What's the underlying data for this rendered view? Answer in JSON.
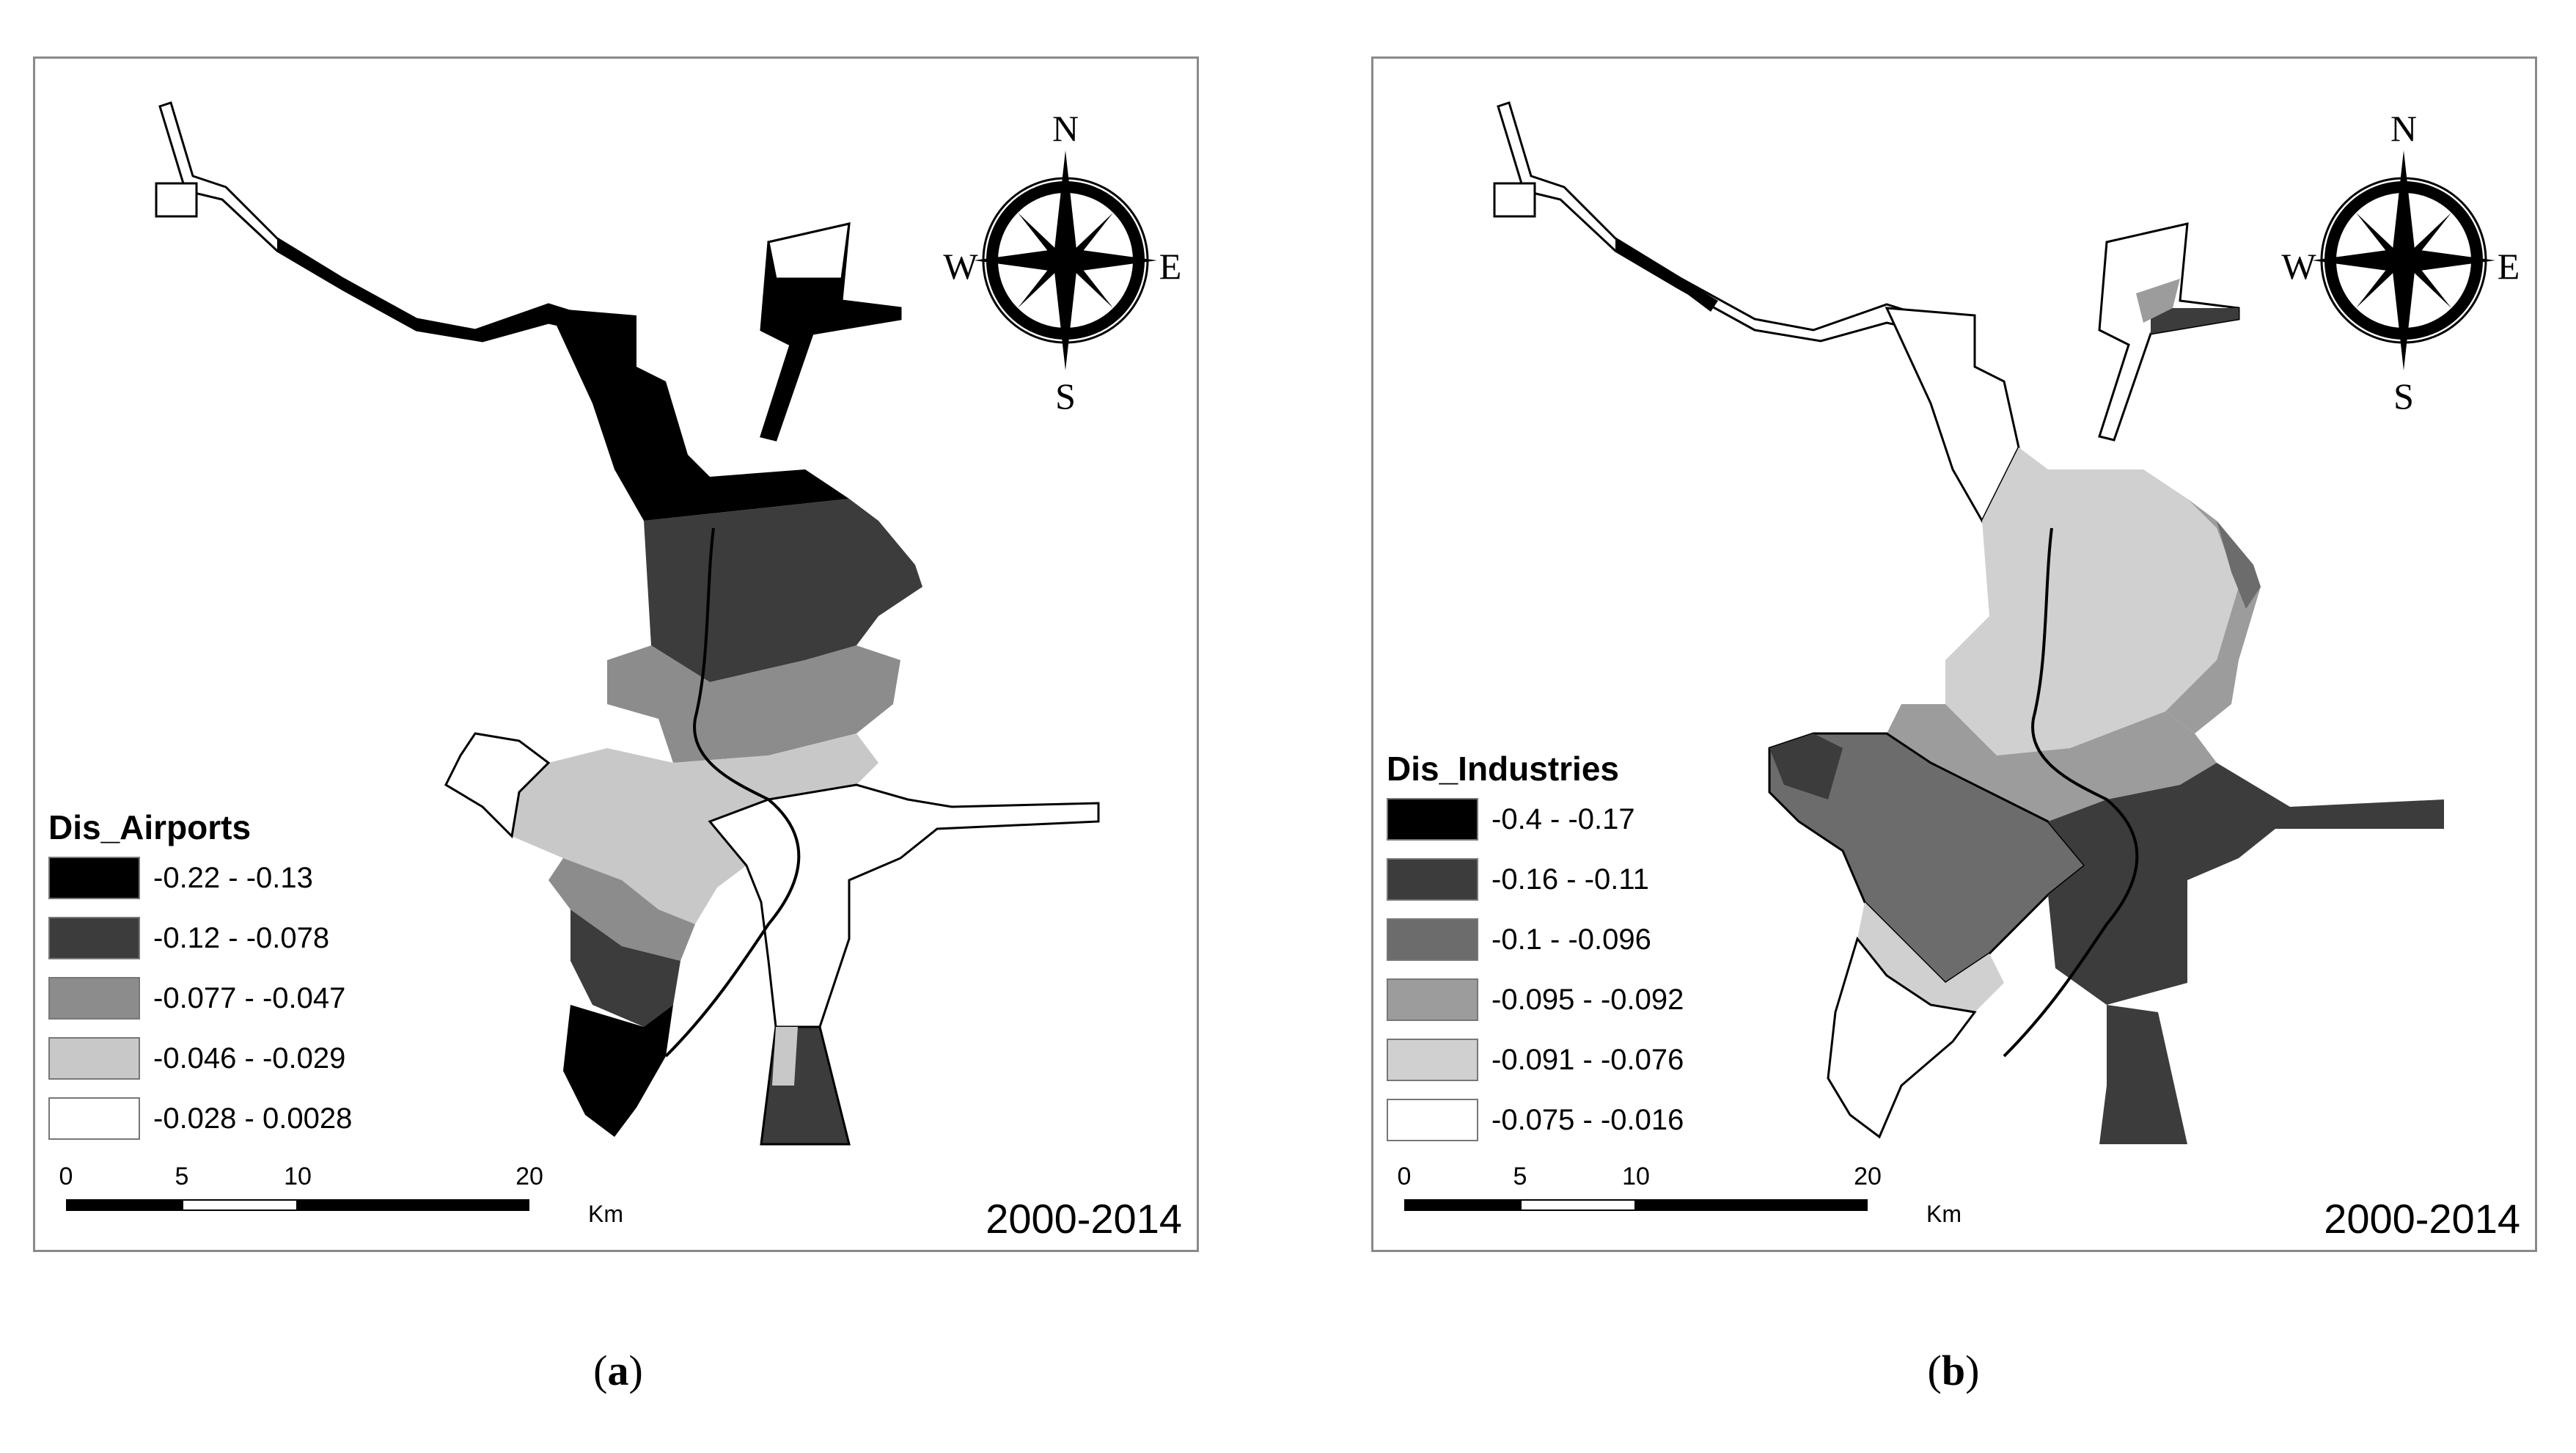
{
  "panels": [
    {
      "id": "a",
      "legend_title": "Dis_Airports",
      "classes": [
        {
          "label": "-0.22 - -0.13",
          "color": "#000000"
        },
        {
          "label": "-0.12 - -0.078",
          "color": "#3c3c3c"
        },
        {
          "label": "-0.077 - -0.047",
          "color": "#8c8c8c"
        },
        {
          "label": "-0.046 - -0.029",
          "color": "#c8c8c8"
        },
        {
          "label": "-0.028 - 0.0028",
          "color": "#ffffff"
        }
      ],
      "period": "2000-2014",
      "sub_label": "a"
    },
    {
      "id": "b",
      "legend_title": "Dis_Industries",
      "classes": [
        {
          "label": "-0.4 - -0.17",
          "color": "#000000"
        },
        {
          "label": "-0.16 - -0.11",
          "color": "#3c3c3c"
        },
        {
          "label": "-0.1 - -0.096",
          "color": "#6c6c6c"
        },
        {
          "label": "-0.095 - -0.092",
          "color": "#9c9c9c"
        },
        {
          "label": "-0.091 - -0.076",
          "color": "#d0d0d0"
        },
        {
          "label": "-0.075 - -0.016",
          "color": "#ffffff"
        }
      ],
      "period": "2000-2014",
      "sub_label": "b"
    }
  ],
  "scale_bar": {
    "ticks": [
      "0",
      "5",
      "10",
      "20"
    ],
    "unit": "Km"
  },
  "compass": {
    "north": "N",
    "south": "S",
    "east": "E",
    "west": "W"
  }
}
